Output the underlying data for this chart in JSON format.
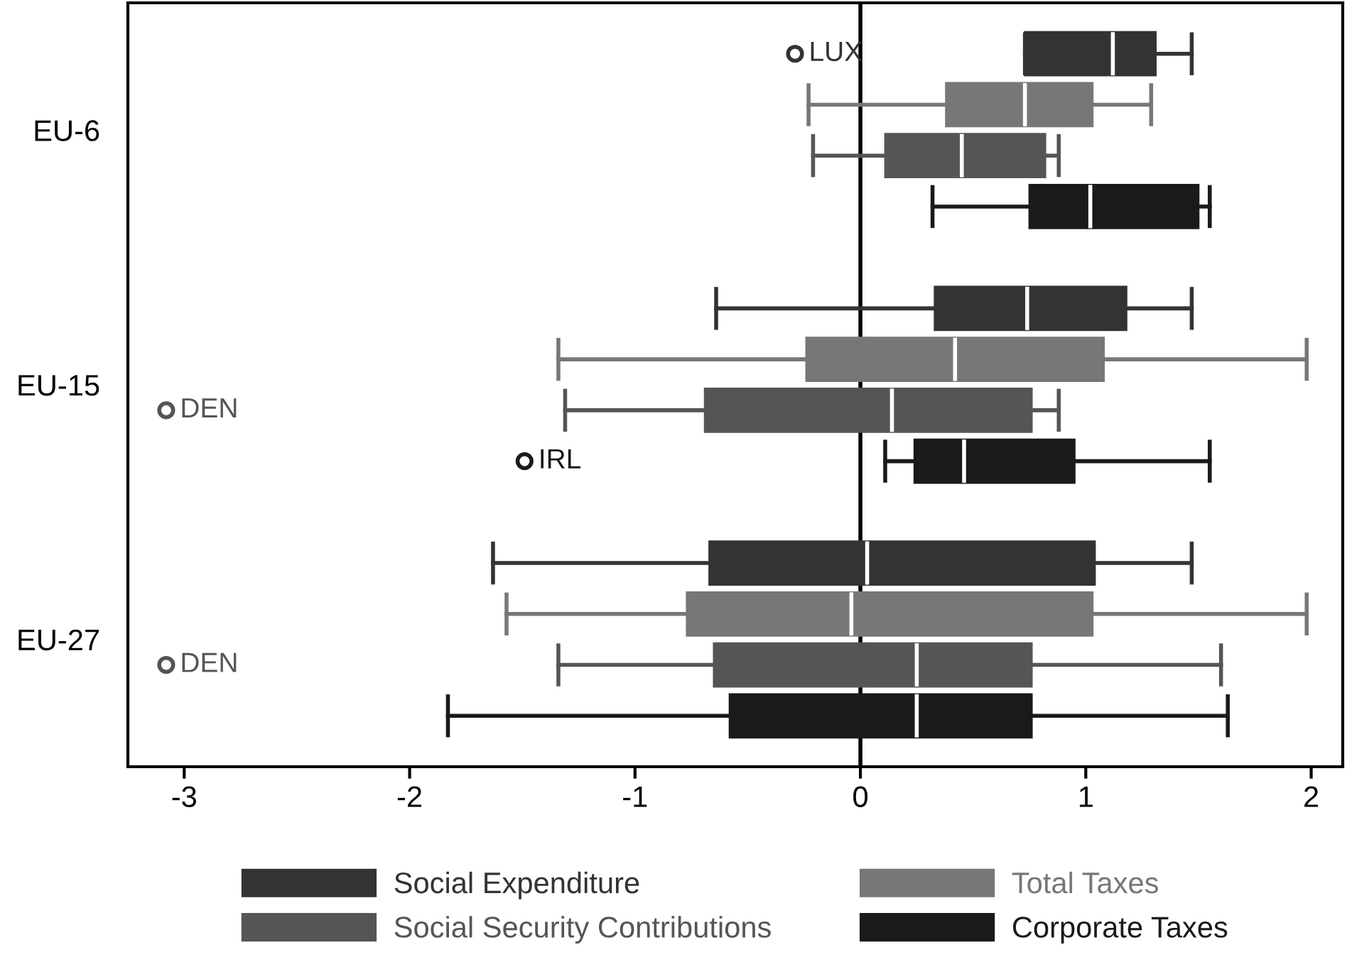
{
  "chart_data": {
    "type": "box",
    "orientation": "horizontal",
    "categories": [
      "EU-6",
      "EU-15",
      "EU-27"
    ],
    "series": [
      {
        "name": "Social Expenditure",
        "color": "#333333",
        "boxes": [
          {
            "low": 0.73,
            "q1": 0.73,
            "median": 1.12,
            "q3": 1.31,
            "high": 1.47,
            "outliers": [
              -0.29
            ]
          },
          {
            "low": -0.64,
            "q1": 0.33,
            "median": 0.74,
            "q3": 1.18,
            "high": 1.47
          },
          {
            "low": -1.63,
            "q1": -0.67,
            "median": 0.03,
            "q3": 1.04,
            "high": 1.47
          }
        ]
      },
      {
        "name": "Total Taxes",
        "color": "#777777",
        "boxes": [
          {
            "low": -0.23,
            "q1": 0.38,
            "median": 0.73,
            "q3": 1.03,
            "high": 1.29
          },
          {
            "low": -1.34,
            "q1": -0.24,
            "median": 0.42,
            "q3": 1.08,
            "high": 1.98
          },
          {
            "low": -1.57,
            "q1": -0.77,
            "median": -0.04,
            "q3": 1.03,
            "high": 1.98
          }
        ]
      },
      {
        "name": "Social Security Contributions",
        "color": "#555555",
        "boxes": [
          {
            "low": -0.21,
            "q1": 0.11,
            "median": 0.45,
            "q3": 0.82,
            "high": 0.88
          },
          {
            "low": -1.31,
            "q1": -0.69,
            "median": 0.14,
            "q3": 0.76,
            "high": 0.88,
            "outliers": [
              -3.08
            ]
          },
          {
            "low": -1.34,
            "q1": -0.65,
            "median": 0.25,
            "q3": 0.76,
            "high": 1.6,
            "outliers": [
              -3.08
            ]
          }
        ]
      },
      {
        "name": "Corporate Taxes",
        "color": "#1a1a1a",
        "boxes": [
          {
            "low": 0.32,
            "q1": 0.75,
            "median": 1.02,
            "q3": 1.5,
            "high": 1.55
          },
          {
            "low": 0.11,
            "q1": 0.24,
            "median": 0.46,
            "q3": 0.95,
            "high": 1.55,
            "outliers": [
              -1.49
            ]
          },
          {
            "low": -1.83,
            "q1": -0.58,
            "median": 0.25,
            "q3": 0.76,
            "high": 1.63
          }
        ]
      }
    ],
    "xlim": [
      -3.25,
      2.14
    ],
    "xticks": [
      -3,
      -2,
      -1,
      0,
      1,
      2
    ],
    "ref_lines": [
      {
        "axis": "x",
        "value": 0,
        "color": "#000000"
      }
    ],
    "annotations": [
      "LUX",
      "DEN",
      "IRL",
      "DEN"
    ],
    "grid": false,
    "legend": "bottom"
  }
}
